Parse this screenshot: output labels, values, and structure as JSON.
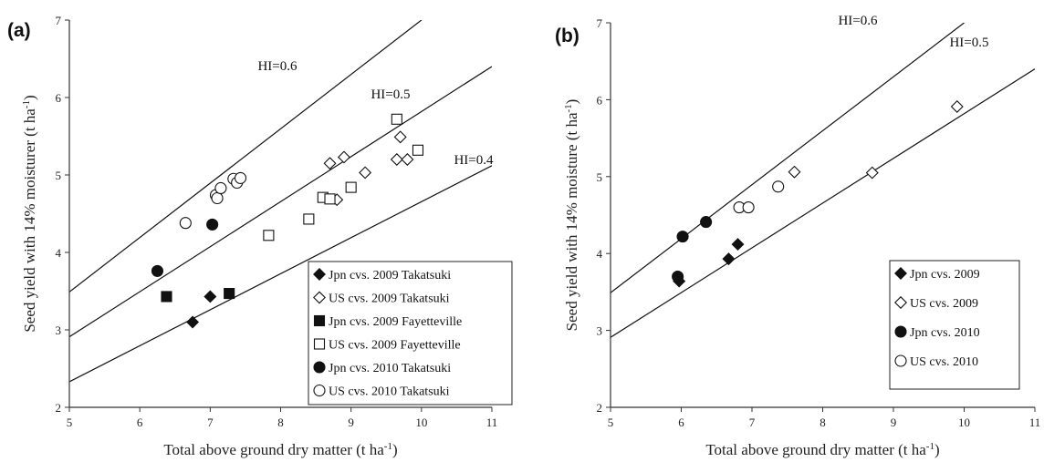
{
  "chart_data": [
    {
      "type": "scatter",
      "panel_label": "(a)",
      "xlabel_main": "Total above ground dry matter (t ha",
      "xlabel_sup": "-1",
      "xlabel_tail": ")",
      "ylabel_main": "Seed yield with 14% moisturer (t ha",
      "ylabel_sup": "-1",
      "ylabel_tail": ")",
      "xlim": [
        5,
        11
      ],
      "ylim": [
        2,
        7
      ],
      "xticks": [
        "5",
        "6",
        "7",
        "8",
        "9",
        "10",
        "11"
      ],
      "yticks": [
        "2",
        "3",
        "4",
        "5",
        "6",
        "7"
      ],
      "grid": false,
      "legend_position": "bottom-right",
      "reference_lines": [
        {
          "label": "HI=0.6",
          "x": [
            5,
            10
          ],
          "y": [
            3.49,
            7.0
          ]
        },
        {
          "label": "HI=0.5",
          "x": [
            5,
            11
          ],
          "y": [
            2.91,
            6.4
          ]
        },
        {
          "label": "HI=0.4",
          "x": [
            5,
            11
          ],
          "y": [
            2.33,
            5.12
          ]
        }
      ],
      "series": [
        {
          "name": "Jpn cvs. 2009 Takatsuki",
          "marker": "diamond-filled",
          "x": [
            6.75,
            7.0
          ],
          "y": [
            3.1,
            3.43
          ]
        },
        {
          "name": "US cvs. 2009 Takatsuki",
          "marker": "diamond-open",
          "x": [
            8.7,
            8.9,
            9.2,
            8.8,
            9.65,
            9.7,
            9.8
          ],
          "y": [
            5.15,
            5.23,
            5.03,
            4.68,
            5.2,
            5.49,
            5.2
          ]
        },
        {
          "name": "Jpn cvs. 2009 Fayetteville",
          "marker": "square-filled",
          "x": [
            6.38,
            7.27
          ],
          "y": [
            3.43,
            3.47
          ]
        },
        {
          "name": "US cvs. 2009 Fayetteville",
          "marker": "square-open",
          "x": [
            7.83,
            8.4,
            8.6,
            8.7,
            9.0,
            9.65,
            9.95
          ],
          "y": [
            4.22,
            4.43,
            4.71,
            4.69,
            4.84,
            5.72,
            5.32
          ]
        },
        {
          "name": "Jpn cvs. 2010 Takatsuki",
          "marker": "circle-filled",
          "x": [
            6.25,
            7.03
          ],
          "y": [
            3.76,
            4.36
          ]
        },
        {
          "name": "US cvs. 2010 Takatsuki",
          "marker": "circle-open",
          "x": [
            6.65,
            7.08,
            7.1,
            7.15,
            7.33,
            7.38,
            7.43
          ],
          "y": [
            4.38,
            4.74,
            4.7,
            4.83,
            4.95,
            4.9,
            4.96
          ]
        }
      ]
    },
    {
      "type": "scatter",
      "panel_label": "(b)",
      "xlabel_main": "Total above ground dry matter (t ha",
      "xlabel_sup": "-1",
      "xlabel_tail": ")",
      "ylabel_main": "Seed yield with 14% moisture (t ha",
      "ylabel_sup": "-1",
      "ylabel_tail": ")",
      "xlim": [
        5,
        11
      ],
      "ylim": [
        2,
        7
      ],
      "xticks": [
        "5",
        "6",
        "7",
        "8",
        "9",
        "10",
        "11"
      ],
      "yticks": [
        "2",
        "3",
        "4",
        "5",
        "6",
        "7"
      ],
      "grid": false,
      "legend_position": "bottom-right",
      "reference_lines": [
        {
          "label": "HI=0.6",
          "x": [
            5,
            10
          ],
          "y": [
            3.49,
            7.0
          ]
        },
        {
          "label": "HI=0.5",
          "x": [
            5,
            11
          ],
          "y": [
            2.91,
            6.4
          ]
        }
      ],
      "series": [
        {
          "name": "Jpn cvs. 2009",
          "marker": "diamond-filled",
          "x": [
            5.97,
            6.67,
            6.8
          ],
          "y": [
            3.64,
            3.93,
            4.12
          ]
        },
        {
          "name": "US cvs. 2009",
          "marker": "diamond-open",
          "x": [
            7.6,
            8.7,
            9.9
          ],
          "y": [
            5.06,
            5.05,
            5.91
          ]
        },
        {
          "name": "Jpn cvs. 2010",
          "marker": "circle-filled",
          "x": [
            5.95,
            6.02,
            6.35
          ],
          "y": [
            3.7,
            4.22,
            4.41
          ]
        },
        {
          "name": "US cvs. 2010",
          "marker": "circle-open",
          "x": [
            6.82,
            6.95,
            7.37
          ],
          "y": [
            4.6,
            4.6,
            4.87
          ]
        }
      ]
    }
  ]
}
